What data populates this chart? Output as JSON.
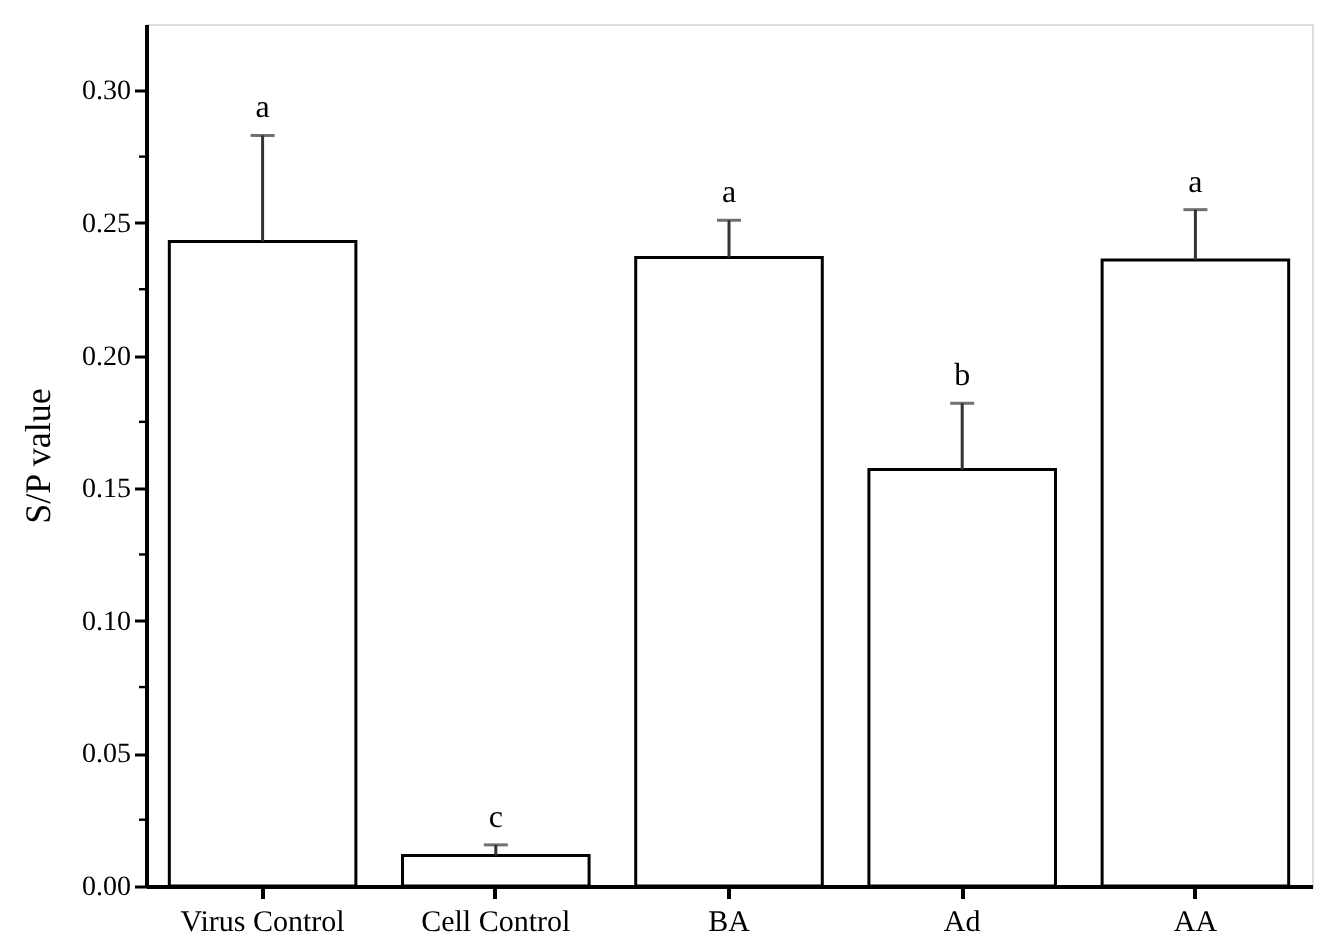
{
  "chart_data": {
    "type": "bar",
    "ylabel": "S/P value",
    "categories": [
      "Virus Control",
      "Cell Control",
      "BA",
      "Ad",
      "AA"
    ],
    "values": [
      0.243,
      0.0115,
      0.237,
      0.157,
      0.236
    ],
    "errors": [
      0.04,
      0.004,
      0.014,
      0.025,
      0.019
    ],
    "color": "#ffffff",
    "ylim": [
      0,
      0.325
    ],
    "yticks": [
      {
        "value": 0,
        "label": "0.00"
      },
      {
        "value": 0.025,
        "label": null
      },
      0.05,
      {
        "value": 0.075,
        "label": null
      },
      {
        "value": 0.1,
        "label": "0.10"
      },
      {
        "value": 0.125,
        "label": null
      },
      0.15,
      {
        "value": 0.175,
        "label": null
      },
      {
        "value": 0.2,
        "label": "0.20"
      },
      {
        "value": 0.225,
        "label": null
      },
      0.25,
      {
        "value": 0.275,
        "label": null
      },
      {
        "value": 0.3,
        "label": "0.30"
      }
    ],
    "annotations": [
      "a",
      "c",
      "a",
      "b",
      "a"
    ],
    "grid": false
  }
}
